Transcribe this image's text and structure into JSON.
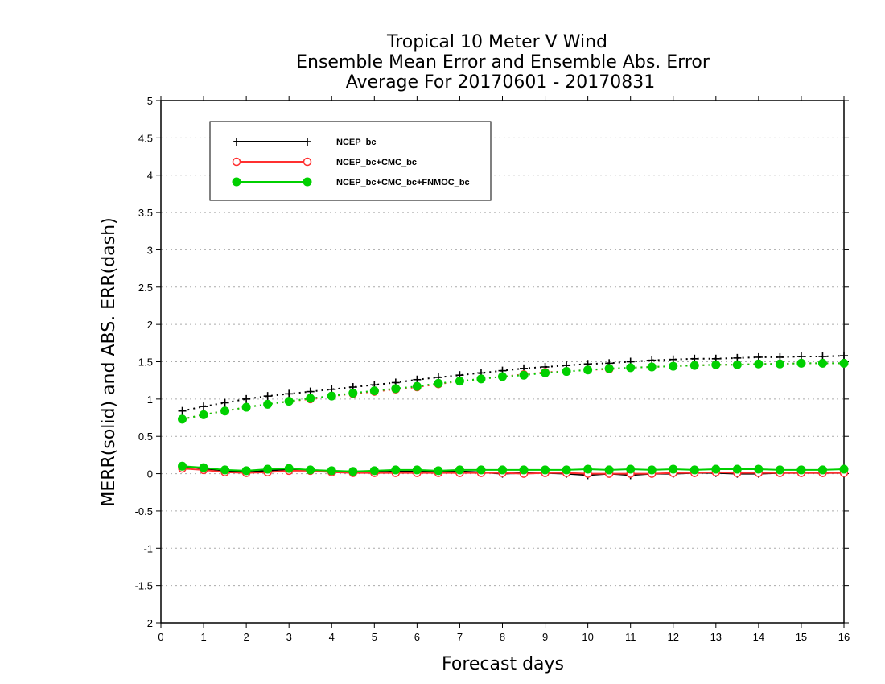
{
  "chart_data": {
    "type": "line",
    "title": [
      "Tropical 10 Meter V Wind",
      "Ensemble Mean Error and Ensemble Abs. Error",
      "Average For 20170601 - 20170831"
    ],
    "xlabel": "Forecast days",
    "ylabel": "MERR(solid) and ABS. ERR(dash)",
    "xlim": [
      0,
      16
    ],
    "ylim": [
      -2,
      5
    ],
    "xticks": [
      "0",
      "1",
      "2",
      "3",
      "4",
      "5",
      "6",
      "7",
      "8",
      "9",
      "10",
      "11",
      "12",
      "13",
      "14",
      "15",
      "16"
    ],
    "yticks": [
      "-2",
      "-1.5",
      "-1",
      "-0.5",
      "0",
      "0.5",
      "1",
      "1.5",
      "2",
      "2.5",
      "3",
      "3.5",
      "4",
      "4.5",
      "5"
    ],
    "grid": "horizontal dotted",
    "legend_position": "upper-left",
    "x": [
      0.5,
      1,
      1.5,
      2,
      2.5,
      3,
      3.5,
      4,
      4.5,
      5,
      5.5,
      6,
      6.5,
      7,
      7.5,
      8,
      8.5,
      9,
      9.5,
      10,
      10.5,
      11,
      11.5,
      12,
      12.5,
      13,
      13.5,
      14,
      14.5,
      15,
      15.5,
      16
    ],
    "series": [
      {
        "name": "NCEP_bc",
        "color": "#000000",
        "marker": "plus",
        "merr": [
          0.1,
          0.07,
          0.04,
          0.02,
          0.04,
          0.06,
          0.04,
          0.03,
          0.02,
          0.02,
          0.03,
          0.03,
          0.03,
          0.03,
          0.02,
          0.0,
          0.01,
          0.01,
          0.0,
          -0.02,
          0.0,
          -0.02,
          0.0,
          0.0,
          0.01,
          0.01,
          0.0,
          0.0,
          0.01,
          0.01,
          0.01,
          0.01
        ],
        "abs_err": [
          0.84,
          0.9,
          0.95,
          1.0,
          1.04,
          1.07,
          1.1,
          1.13,
          1.16,
          1.19,
          1.22,
          1.26,
          1.29,
          1.32,
          1.35,
          1.38,
          1.41,
          1.43,
          1.45,
          1.47,
          1.48,
          1.5,
          1.52,
          1.53,
          1.54,
          1.54,
          1.55,
          1.56,
          1.56,
          1.57,
          1.57,
          1.58
        ]
      },
      {
        "name": "NCEP_bc+CMC_bc",
        "color": "#ff3030",
        "marker": "open-circle",
        "merr": [
          0.07,
          0.05,
          0.02,
          0.01,
          0.02,
          0.04,
          0.04,
          0.02,
          0.01,
          0.01,
          0.01,
          0.01,
          0.01,
          0.01,
          0.01,
          0.01,
          0.0,
          0.01,
          0.01,
          0.0,
          0.0,
          0.0,
          0.0,
          0.01,
          0.01,
          0.02,
          0.01,
          0.01,
          0.01,
          0.01,
          0.01,
          0.01
        ],
        "abs_err": [
          0.73,
          0.79,
          0.84,
          0.89,
          0.93,
          0.97,
          1.0,
          1.04,
          1.07,
          1.1,
          1.13,
          1.16,
          1.2,
          1.24,
          1.27,
          1.3,
          1.33,
          1.36,
          1.37,
          1.39,
          1.4,
          1.42,
          1.43,
          1.44,
          1.45,
          1.46,
          1.46,
          1.47,
          1.47,
          1.48,
          1.48,
          1.48
        ]
      },
      {
        "name": "NCEP_bc+CMC_bc+FNMOC_bc",
        "color": "#00d000",
        "marker": "filled-circle",
        "merr": [
          0.1,
          0.08,
          0.05,
          0.04,
          0.06,
          0.07,
          0.05,
          0.04,
          0.03,
          0.04,
          0.05,
          0.05,
          0.04,
          0.05,
          0.05,
          0.05,
          0.05,
          0.05,
          0.05,
          0.06,
          0.05,
          0.06,
          0.05,
          0.06,
          0.05,
          0.06,
          0.06,
          0.06,
          0.05,
          0.05,
          0.05,
          0.06
        ],
        "abs_err": [
          0.73,
          0.79,
          0.84,
          0.89,
          0.93,
          0.97,
          1.01,
          1.04,
          1.08,
          1.11,
          1.14,
          1.17,
          1.21,
          1.24,
          1.27,
          1.3,
          1.32,
          1.35,
          1.37,
          1.39,
          1.41,
          1.42,
          1.43,
          1.44,
          1.45,
          1.46,
          1.46,
          1.47,
          1.47,
          1.48,
          1.48,
          1.48
        ]
      }
    ]
  }
}
